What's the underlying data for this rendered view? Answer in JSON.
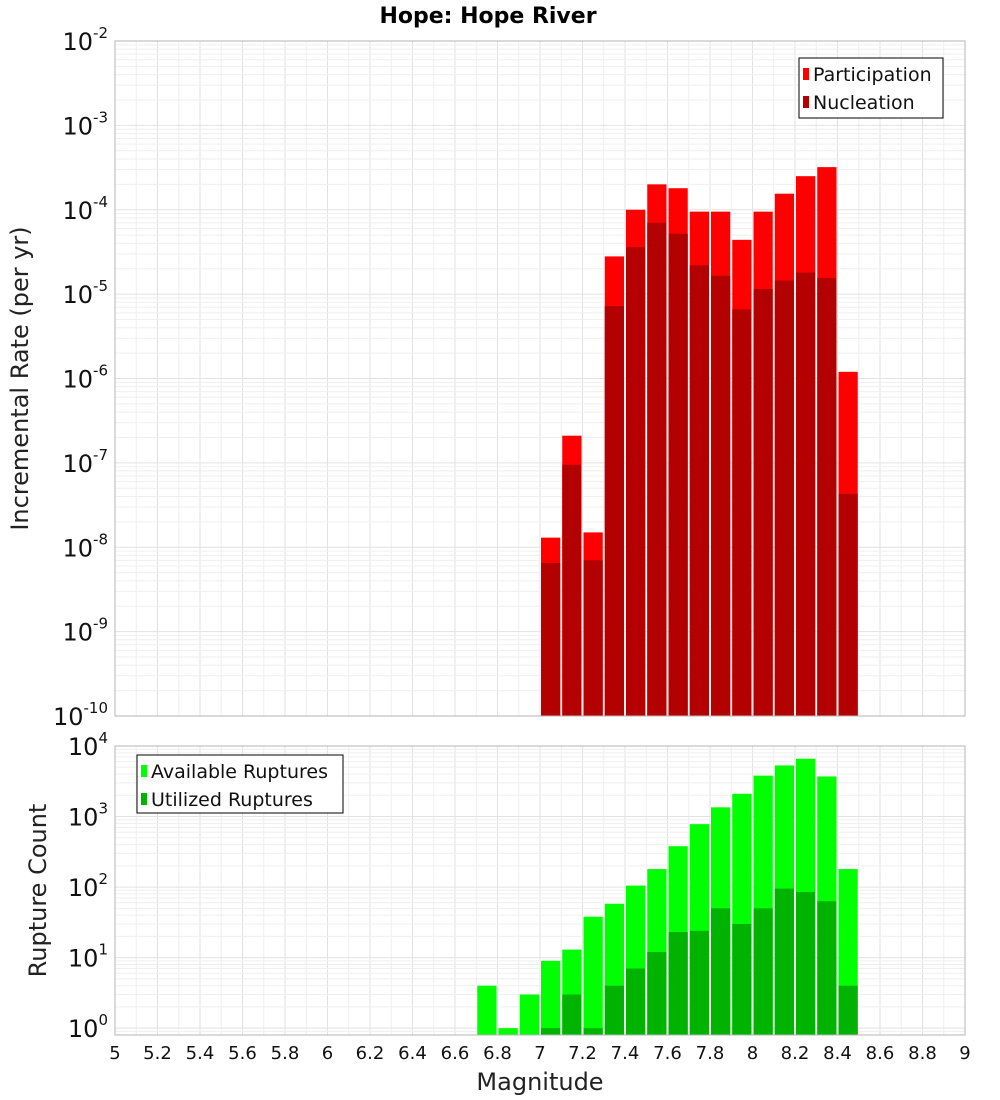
{
  "chart_data": {
    "title": "Hope: Hope River",
    "xlabel": "Magnitude",
    "xlim": [
      5,
      9
    ],
    "xticks": [
      "5",
      "5.2",
      "5.4",
      "5.6",
      "5.8",
      "6",
      "6.2",
      "6.4",
      "6.6",
      "6.8",
      "7",
      "7.2",
      "7.4",
      "7.6",
      "7.8",
      "8",
      "8.2",
      "8.4",
      "8.6",
      "8.8",
      "9"
    ],
    "bin_width": 0.1,
    "panels": [
      {
        "type": "bar",
        "ylabel": "Incremental Rate (per yr)",
        "yscale": "log",
        "ylim": [
          1e-10,
          0.01
        ],
        "yticks": [
          {
            "base": "10",
            "exp": "-2"
          },
          {
            "base": "10",
            "exp": "-3"
          },
          {
            "base": "10",
            "exp": "-4"
          },
          {
            "base": "10",
            "exp": "-5"
          },
          {
            "base": "10",
            "exp": "-6"
          },
          {
            "base": "10",
            "exp": "-7"
          },
          {
            "base": "10",
            "exp": "-8"
          },
          {
            "base": "10",
            "exp": "-9"
          },
          {
            "base": "10",
            "exp": "-10"
          }
        ],
        "legend_position": "top-right",
        "x": [
          7.05,
          7.15,
          7.25,
          7.35,
          7.45,
          7.55,
          7.65,
          7.75,
          7.85,
          7.95,
          8.05,
          8.15,
          8.25,
          8.35,
          8.45
        ],
        "series": [
          {
            "name": "Participation",
            "color": "#ff0000",
            "values": [
              1.3e-08,
              2.1e-07,
              1.5e-08,
              2.8e-05,
              0.0001,
              0.0002,
              0.00018,
              9.5e-05,
              9.5e-05,
              4.4e-05,
              9.5e-05,
              0.000155,
              0.00025,
              0.00032,
              1.2e-06
            ]
          },
          {
            "name": "Nucleation",
            "color": "#b30000",
            "values": [
              6.5e-09,
              9.5e-08,
              7e-09,
              7.2e-06,
              3.6e-05,
              7e-05,
              5.2e-05,
              2.2e-05,
              1.65e-05,
              6.6e-06,
              1.15e-05,
              1.45e-05,
              1.8e-05,
              1.55e-05,
              4.3e-08
            ]
          }
        ]
      },
      {
        "type": "bar",
        "ylabel": "Rupture Count",
        "yscale": "log",
        "ylim": [
          0.8,
          10000
        ],
        "yticks": [
          {
            "base": "10",
            "exp": "4"
          },
          {
            "base": "10",
            "exp": "3"
          },
          {
            "base": "10",
            "exp": "2"
          },
          {
            "base": "10",
            "exp": "1"
          },
          {
            "base": "10",
            "exp": "0"
          }
        ],
        "legend_position": "top-left",
        "x": [
          6.75,
          6.85,
          6.95,
          7.05,
          7.15,
          7.25,
          7.35,
          7.45,
          7.55,
          7.65,
          7.75,
          7.85,
          7.95,
          8.05,
          8.15,
          8.25,
          8.35,
          8.45
        ],
        "series": [
          {
            "name": "Available Ruptures",
            "color": "#00ff00",
            "values": [
              4,
              1,
              3,
              9,
              13,
              38,
              58,
              105,
              180,
              380,
              780,
              1350,
              2100,
              3800,
              5300,
              6600,
              3700,
              180
            ]
          },
          {
            "name": "Utilized Ruptures",
            "color": "#00b300",
            "values": [
              null,
              null,
              null,
              1,
              3,
              1,
              4,
              7,
              12,
              23,
              24,
              50,
              30,
              50,
              95,
              85,
              63,
              4
            ]
          }
        ]
      }
    ]
  }
}
